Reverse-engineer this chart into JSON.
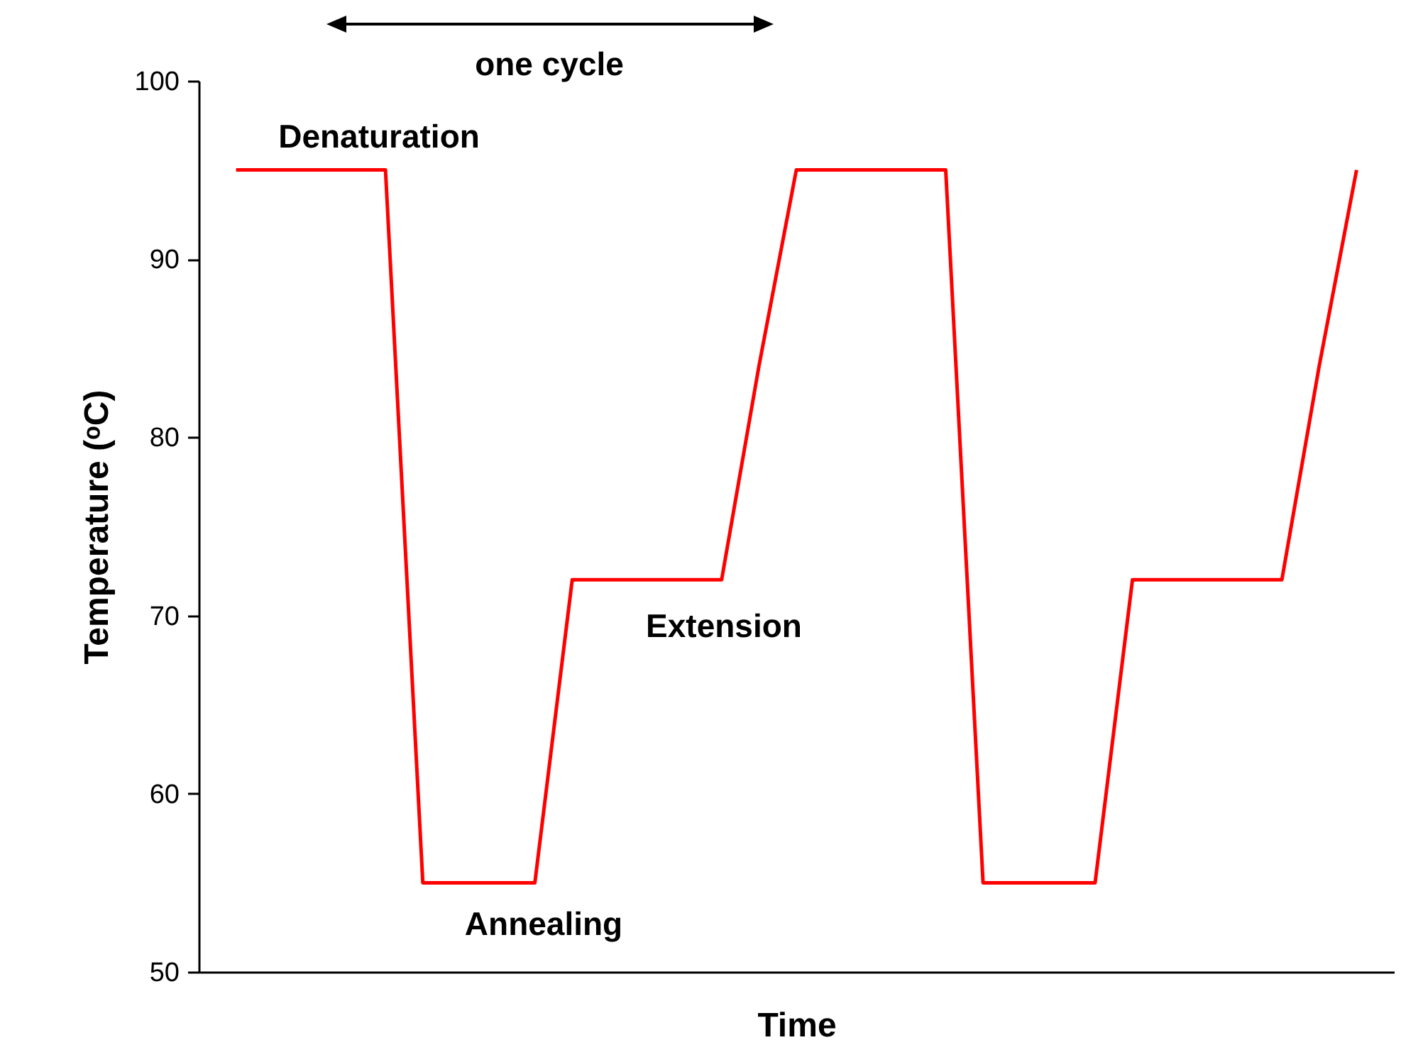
{
  "chart_data": {
    "type": "line",
    "xlabel": "Time",
    "ylabel": "Temperature (ᵒC)",
    "categories": [
      null,
      null,
      null,
      null,
      null,
      null,
      null,
      null,
      null,
      null,
      null,
      null,
      null,
      null,
      null,
      null,
      null,
      null,
      null,
      null,
      null,
      null,
      null,
      null,
      null,
      null,
      null,
      null,
      null,
      null,
      null
    ],
    "series": [
      {
        "color": "#ff0000",
        "values": [
          95,
          95,
          95,
          95,
          95,
          55,
          55,
          55,
          55,
          72,
          72,
          72,
          72,
          72,
          84,
          95,
          95,
          95,
          95,
          95,
          55,
          55,
          55,
          55,
          72,
          72,
          72,
          72,
          72,
          84,
          95
        ]
      }
    ],
    "ylim": [
      50,
      100
    ],
    "yticks": [
      50,
      60,
      70,
      80,
      90,
      100
    ],
    "tick_labels": "y",
    "annotations": [
      "one cycle",
      "Denaturation",
      "Annealing",
      "Extension"
    ]
  }
}
